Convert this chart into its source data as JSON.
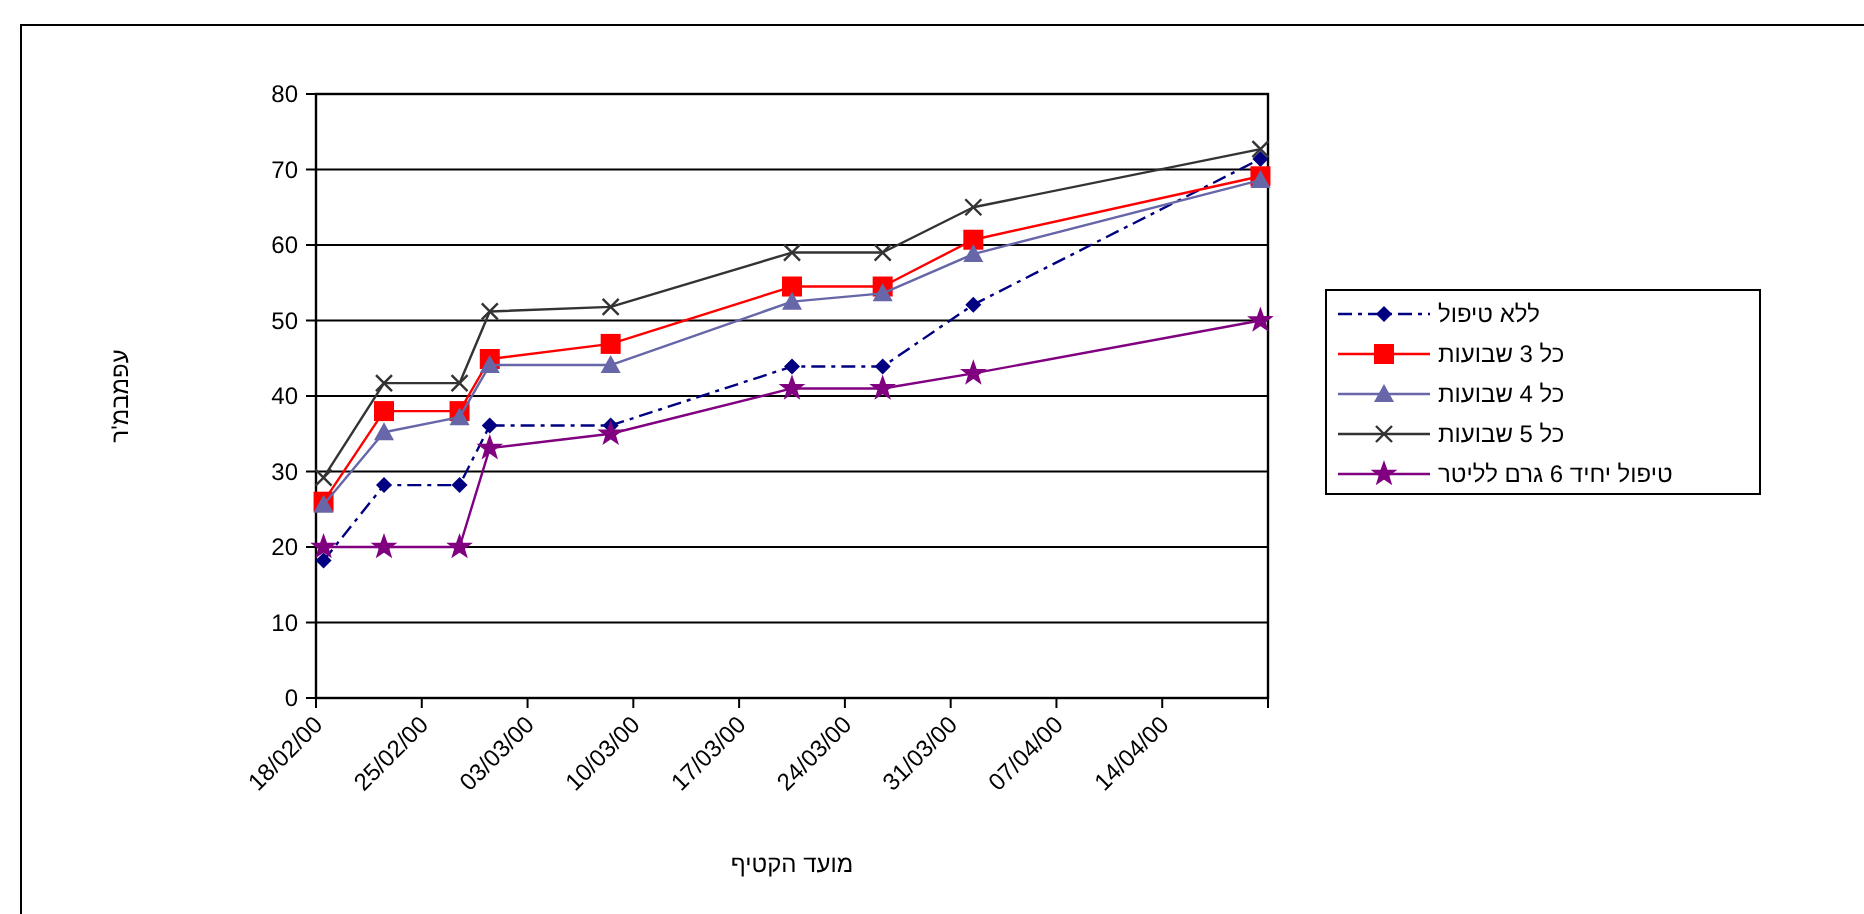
{
  "chart_data": {
    "type": "line",
    "xlabel": "מועד הקטיף",
    "ylabel": "עפמבמ'ר",
    "x": [
      "2000-02-18T12:00",
      "2000-02-22T12:00",
      "2000-02-27T12:00",
      "2000-02-29T12:00",
      "2000-03-08T12:00",
      "2000-03-20T12:00",
      "2000-03-26T12:00",
      "2000-04-01T12:00",
      "2000-04-20T12:00"
    ],
    "series": [
      {
        "name": "ללא טיפול",
        "color": "#000080",
        "marker": "diamond",
        "line_style": "dashdot",
        "values": [
          18.2,
          28.2,
          28.2,
          36.1,
          36.1,
          43.9,
          43.9,
          52.1,
          71.4
        ]
      },
      {
        "name": "כל 3 שבועות",
        "color": "#ff0000",
        "marker": "square",
        "line_style": "solid",
        "values": [
          26.0,
          38.0,
          38.0,
          44.9,
          46.9,
          54.5,
          54.5,
          60.7,
          69.1
        ]
      },
      {
        "name": "כל 4 שבועות",
        "color": "#6666a8",
        "marker": "triangle",
        "line_style": "solid",
        "values": [
          25.6,
          35.2,
          37.2,
          44.1,
          44.1,
          52.5,
          53.6,
          58.8,
          68.6
        ]
      },
      {
        "name": "כל 5 שבועות",
        "color": "#333333",
        "marker": "cross",
        "line_style": "solid",
        "values": [
          29.2,
          41.7,
          41.7,
          51.2,
          51.8,
          59.0,
          59.0,
          65.0,
          72.7
        ]
      },
      {
        "name": "טיפול יחיד 6 גרם לליטר",
        "color": "#800080",
        "marker": "star",
        "line_style": "solid",
        "values": [
          20.0,
          20.0,
          20.0,
          33.1,
          35.0,
          41.0,
          41.0,
          43.0,
          50.0
        ]
      }
    ],
    "xlim": [
      "2000-02-18",
      "2000-04-21"
    ],
    "xticks": [
      {
        "value": "2000-02-18",
        "label": "18/02/00"
      },
      {
        "value": "2000-02-25",
        "label": "25/02/00"
      },
      {
        "value": "2000-03-03",
        "label": "03/03/00"
      },
      {
        "value": "2000-03-10",
        "label": "10/03/00"
      },
      {
        "value": "2000-03-17",
        "label": "17/03/00"
      },
      {
        "value": "2000-03-24",
        "label": "24/03/00"
      },
      {
        "value": "2000-03-31",
        "label": "31/03/00"
      },
      {
        "value": "2000-04-07",
        "label": "07/04/00"
      },
      {
        "value": "2000-04-14",
        "label": "14/04/00"
      },
      {
        "value": "2000-04-21",
        "label": null
      }
    ],
    "ylim": [
      0,
      80
    ],
    "yticks": [
      0,
      10,
      20,
      30,
      40,
      50,
      60,
      70,
      80
    ],
    "grid": "y",
    "legend": "right"
  }
}
